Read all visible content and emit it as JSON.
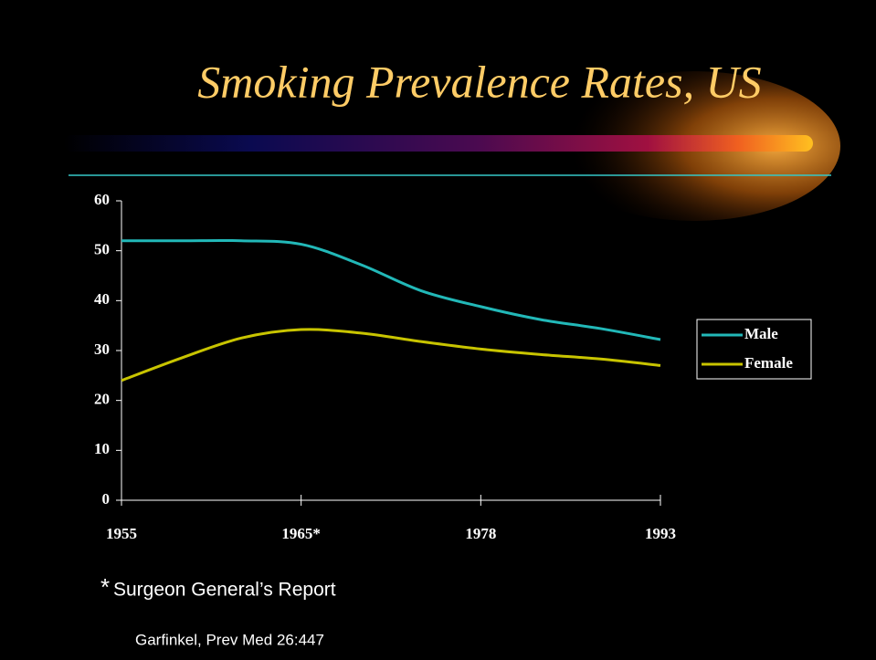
{
  "title": "Smoking Prevalence Rates, US",
  "chart_data": {
    "type": "line",
    "categories": [
      "1955",
      null,
      null,
      "1965*",
      null,
      null,
      "1978",
      null,
      null,
      "1993"
    ],
    "series": [
      {
        "name": "Male",
        "color": "#22b8b8",
        "values": [
          52,
          52,
          52,
          51.3,
          47.2,
          42,
          38.8,
          36.2,
          34.4,
          32.2
        ]
      },
      {
        "name": "Female",
        "color": "#c8c400",
        "values": [
          24,
          28.5,
          32.5,
          34.2,
          33.5,
          31.8,
          30.3,
          29.2,
          28.3,
          27
        ]
      }
    ],
    "ylim": [
      0,
      60
    ],
    "yticks": [
      0,
      10,
      20,
      30,
      40,
      50,
      60
    ],
    "grid": false,
    "legend": "right"
  },
  "footnote_mark": "*",
  "footnote": "Surgeon General’s Report",
  "source": "Garfinkel, Prev Med 26:447"
}
